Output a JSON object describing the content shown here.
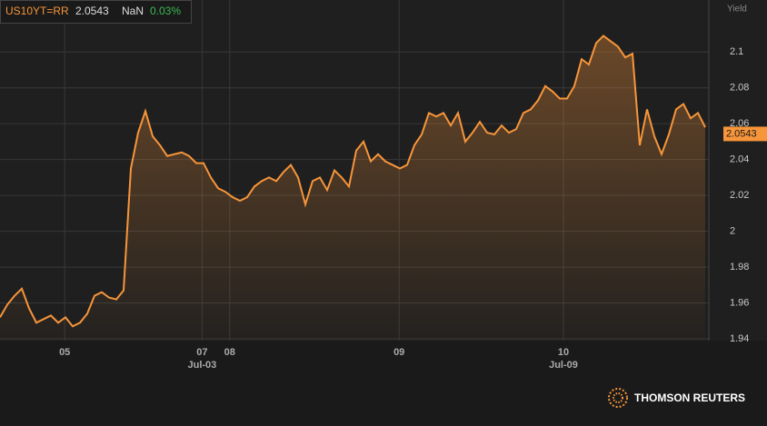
{
  "header": {
    "ric": "US10YT=RR",
    "last": "2.0543",
    "change": "NaN",
    "change_pct": "0.03%"
  },
  "brand": "THOMSON REUTERS",
  "chart_data": {
    "type": "area",
    "y_axis_label": "Yield",
    "grid": true,
    "x": [
      0,
      1,
      2,
      3,
      4,
      5,
      6,
      7,
      8,
      9,
      10,
      11,
      12,
      13,
      14,
      15,
      16,
      17,
      18,
      19,
      20,
      21,
      22,
      23,
      24,
      25,
      26,
      27,
      28,
      29,
      30,
      31,
      32,
      33,
      34,
      35,
      36,
      37,
      38,
      39,
      40,
      41,
      42,
      43,
      44,
      45,
      46,
      47,
      48,
      49,
      50,
      51,
      52,
      53,
      54,
      55,
      56,
      57,
      58,
      59,
      60,
      61,
      62,
      63,
      64,
      65,
      66,
      67,
      68,
      69,
      70,
      71,
      72,
      73,
      74,
      75,
      76,
      77,
      78,
      79,
      80,
      81,
      82,
      83,
      84,
      85,
      86,
      87,
      88,
      89,
      90,
      91,
      92,
      93,
      94,
      95,
      96,
      97
    ],
    "series": [
      {
        "name": "US10YT=RR",
        "color": "#f7953a",
        "values": [
          1.952,
          1.959,
          1.964,
          1.968,
          1.957,
          1.949,
          1.951,
          1.953,
          1.949,
          1.952,
          1.947,
          1.949,
          1.954,
          1.964,
          1.966,
          1.963,
          1.962,
          1.967,
          2.035,
          2.055,
          2.067,
          2.053,
          2.048,
          2.042,
          2.043,
          2.044,
          2.042,
          2.038,
          2.038,
          2.03,
          2.024,
          2.022,
          2.019,
          2.017,
          2.019,
          2.025,
          2.028,
          2.03,
          2.028,
          2.033,
          2.037,
          2.03,
          2.015,
          2.028,
          2.03,
          2.023,
          2.034,
          2.03,
          2.025,
          2.045,
          2.05,
          2.039,
          2.043,
          2.039,
          2.037,
          2.035,
          2.037,
          2.048,
          2.054,
          2.066,
          2.064,
          2.066,
          2.059,
          2.066,
          2.05,
          2.055,
          2.061,
          2.055,
          2.054,
          2.059,
          2.055,
          2.057,
          2.066,
          2.068,
          2.073,
          2.081,
          2.078,
          2.074,
          2.074,
          2.081,
          2.096,
          2.093,
          2.105,
          2.109,
          2.106,
          2.103,
          2.097,
          2.099,
          2.048,
          2.068,
          2.053,
          2.043,
          2.054,
          2.068,
          2.071,
          2.063,
          2.066,
          2.058
        ]
      }
    ],
    "last_value": 2.0543,
    "xlim": [
      0,
      97.5
    ],
    "xticks": [
      {
        "value": 8.9,
        "label": "05"
      },
      {
        "value": 27.8,
        "label": "07"
      },
      {
        "value": 31.6,
        "label": "08"
      },
      {
        "value": 54.9,
        "label": "09"
      },
      {
        "value": 77.5,
        "label": "10"
      }
    ],
    "xticks_sub": [
      {
        "value": 27.8,
        "label": "Jul-03"
      },
      {
        "value": 77.5,
        "label": "Jul-09"
      }
    ],
    "ylim": [
      1.939,
      2.129
    ],
    "yticks": [
      1.94,
      1.96,
      1.98,
      2.0,
      2.02,
      2.04,
      2.06,
      2.08,
      2.1
    ]
  }
}
